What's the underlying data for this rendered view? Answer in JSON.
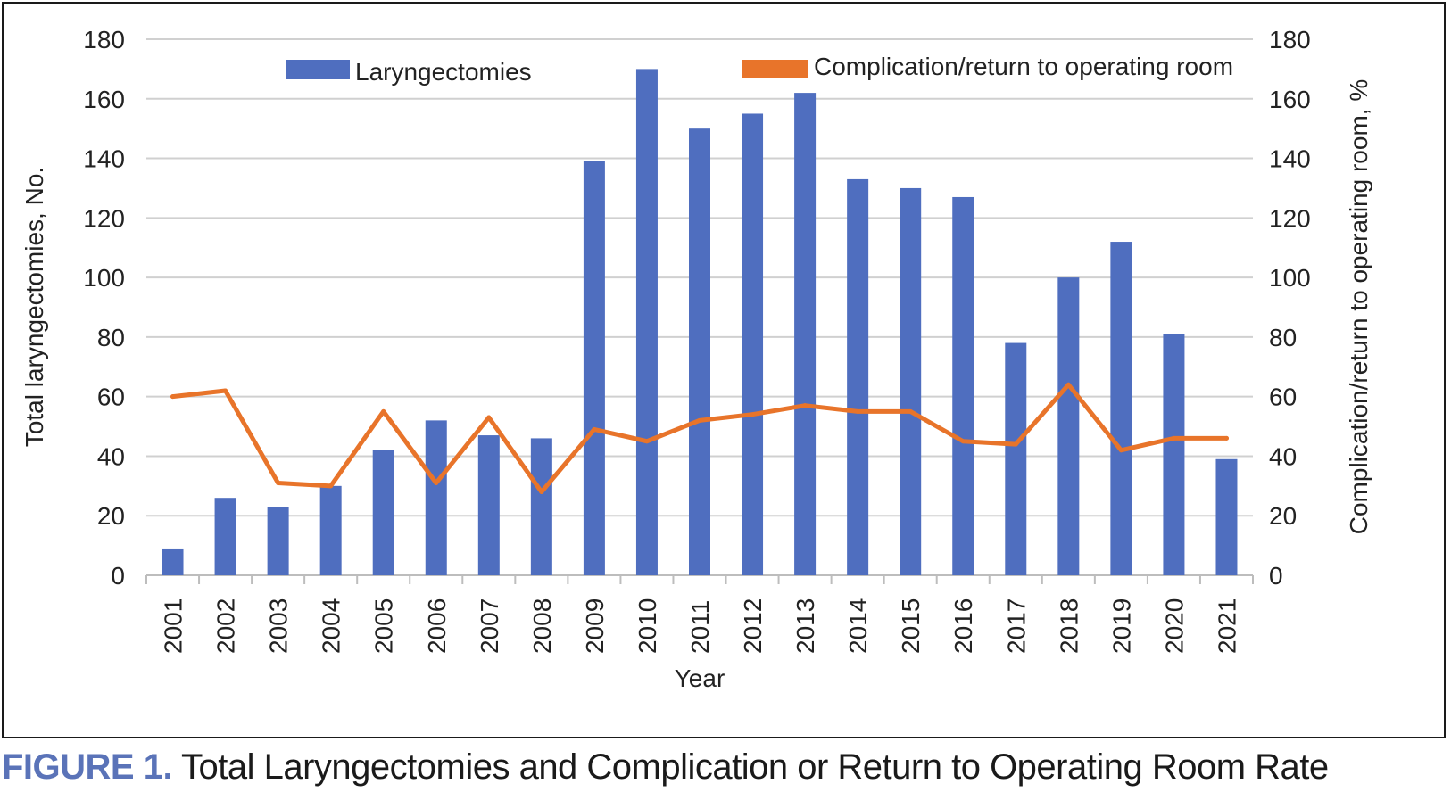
{
  "chart_data": {
    "type": "bar",
    "categories": [
      "2001",
      "2002",
      "2003",
      "2004",
      "2005",
      "2006",
      "2007",
      "2008",
      "2009",
      "2010",
      "2011",
      "2012",
      "2013",
      "2014",
      "2015",
      "2016",
      "2017",
      "2018",
      "2019",
      "2020",
      "2021"
    ],
    "series": [
      {
        "name": "Laryngectomies",
        "type": "bar",
        "axis": "left",
        "values": [
          9,
          26,
          23,
          30,
          42,
          52,
          47,
          46,
          139,
          170,
          150,
          155,
          162,
          133,
          130,
          127,
          78,
          100,
          112,
          81,
          39
        ]
      },
      {
        "name": "Complication/return to operating room",
        "type": "line",
        "axis": "right",
        "values": [
          60,
          62,
          31,
          30,
          55,
          31,
          53,
          28,
          49,
          45,
          52,
          54,
          57,
          55,
          55,
          45,
          44,
          64,
          42,
          46,
          46
        ]
      }
    ],
    "xlabel": "Year",
    "ylabel": "Total laryngectomies, No.",
    "y2label": "Complication/return to operating room, %",
    "ylim": [
      0,
      180
    ],
    "y2lim": [
      0,
      180
    ],
    "yticks": [
      "0",
      "20",
      "40",
      "60",
      "80",
      "100",
      "120",
      "140",
      "160",
      "180"
    ],
    "y2ticks": [
      "0",
      "20",
      "40",
      "60",
      "80",
      "100",
      "120",
      "140",
      "160",
      "180"
    ],
    "grid": true,
    "legend_placement": "top",
    "colors": {
      "bar": "#4f6ebf",
      "line": "#e8742a",
      "grid": "#d0d0d0"
    }
  },
  "caption": {
    "label": "FIGURE 1.",
    "text": "Total Laryngectomies and Complication or Return to Operating Room Rate"
  }
}
